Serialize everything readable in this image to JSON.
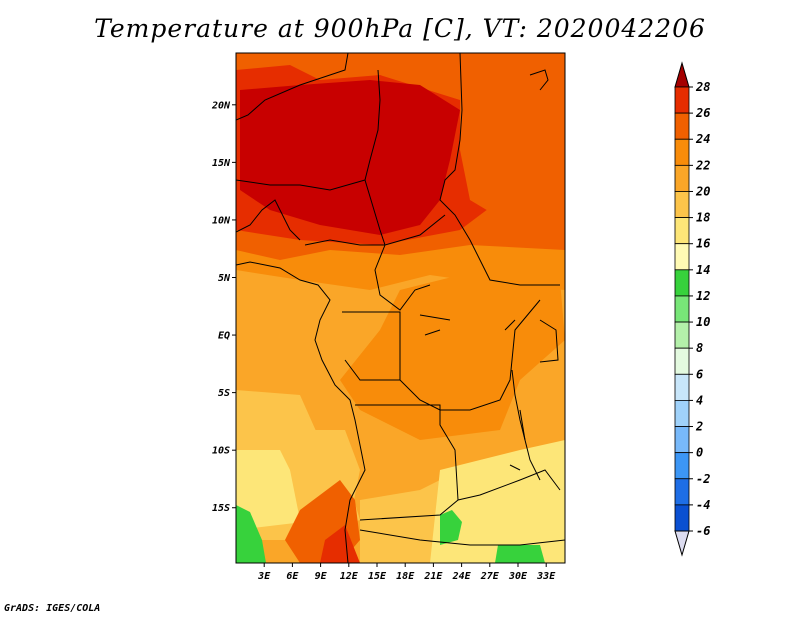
{
  "title": "Temperature at 900hPa [C], VT: 2020042206",
  "footer": "GrADS: IGES/COLA",
  "map": {
    "lat_labels": [
      "20N",
      "15N",
      "10N",
      "5N",
      "EQ",
      "5S",
      "10S",
      "15S"
    ],
    "lon_labels": [
      "3E",
      "6E",
      "9E",
      "12E",
      "15E",
      "18E",
      "21E",
      "24E",
      "27E",
      "30E",
      "33E"
    ],
    "lat_range": [
      -19.8,
      24.5
    ],
    "lon_range": [
      0,
      35
    ]
  },
  "colorbar": {
    "labels": [
      "28",
      "26",
      "24",
      "22",
      "20",
      "18",
      "16",
      "14",
      "12",
      "10",
      "8",
      "6",
      "4",
      "2",
      "0",
      "-2",
      "-4",
      "-6"
    ],
    "colors": [
      "#c80000",
      "#e62d00",
      "#f06000",
      "#f88c0a",
      "#faa628",
      "#fcc44a",
      "#fde678",
      "#fffab4",
      "#37d23c",
      "#78e678",
      "#b4f0aa",
      "#e4fae0",
      "#c8e6fa",
      "#a0d2fa",
      "#78b9fa",
      "#3c96f5",
      "#1e6ee6",
      "#0a50d2",
      "#0032b4",
      "#000a64"
    ],
    "top_cap_color": "#a50000",
    "bottom_cap_color": "#dcdcf0"
  }
}
